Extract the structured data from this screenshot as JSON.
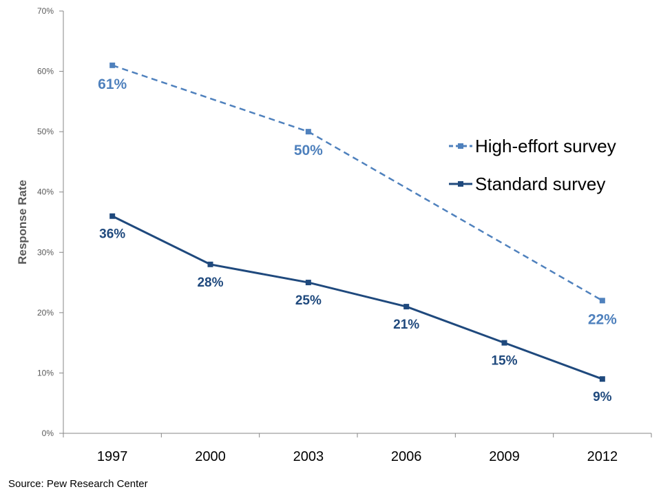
{
  "chart_data": {
    "type": "line",
    "categories": [
      "1997",
      "2000",
      "2003",
      "2006",
      "2009",
      "2012"
    ],
    "ylabel": "Response Rate",
    "ylim": [
      0,
      70
    ],
    "yticks": [
      "0%",
      "10%",
      "20%",
      "30%",
      "40%",
      "50%",
      "60%",
      "70%"
    ],
    "grid": false,
    "legend_position": "right",
    "series": [
      {
        "name": "High-effort survey",
        "color": "#4F81BD",
        "line_style": "dashed",
        "points": [
          {
            "x": "1997",
            "y": 61,
            "label": "61%"
          },
          {
            "x": "2003",
            "y": 50,
            "label": "50%"
          },
          {
            "x": "2012",
            "y": 22,
            "label": "22%"
          }
        ]
      },
      {
        "name": "Standard survey",
        "color": "#1F497D",
        "line_style": "solid",
        "points": [
          {
            "x": "1997",
            "y": 36,
            "label": "36%"
          },
          {
            "x": "2000",
            "y": 28,
            "label": "28%"
          },
          {
            "x": "2003",
            "y": 25,
            "label": "25%"
          },
          {
            "x": "2006",
            "y": 21,
            "label": "21%"
          },
          {
            "x": "2009",
            "y": 15,
            "label": "15%"
          },
          {
            "x": "2012",
            "y": 9,
            "label": "9%"
          }
        ]
      }
    ]
  },
  "source": "Source: Pew Research Center"
}
